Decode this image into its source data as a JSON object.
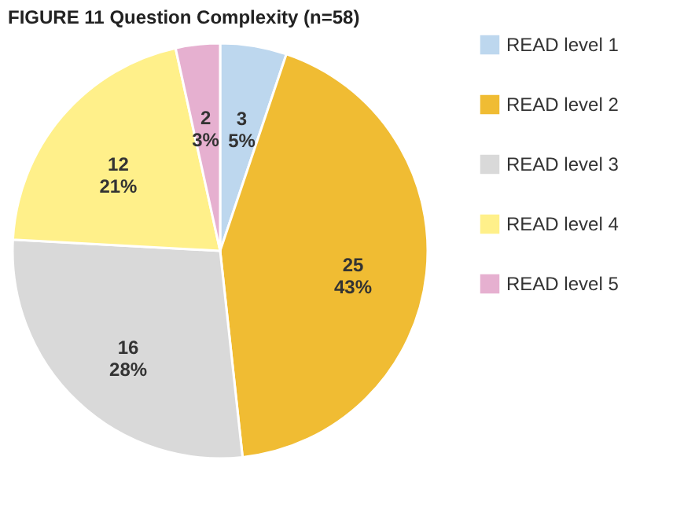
{
  "chart_data": {
    "type": "pie",
    "title": "FIGURE 11 Question Complexity (n=58)",
    "categories": [
      "READ level 1",
      "READ level 2",
      "READ level 3",
      "READ level 4",
      "READ level 5"
    ],
    "values": [
      3,
      25,
      16,
      12,
      2
    ],
    "value_labels": [
      "3\n5%",
      "25\n43%",
      "16\n28%",
      "12\n21%",
      "2\n3%"
    ],
    "colors": [
      "#bdd7ee",
      "#f0bc33",
      "#d9d9d9",
      "#fff08a",
      "#e6b0d0"
    ],
    "legend": "right"
  }
}
